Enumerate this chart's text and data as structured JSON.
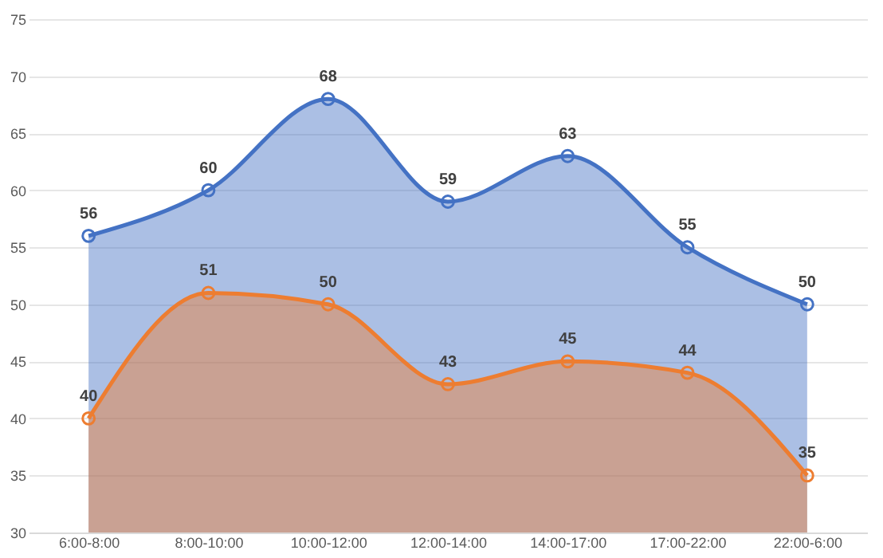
{
  "chart_data": {
    "type": "area",
    "categories": [
      "6:00-8:00",
      "8:00-10:00",
      "10:00-12:00",
      "12:00-14:00",
      "14:00-17:00",
      "17:00-22:00",
      "22:00-6:00"
    ],
    "series": [
      {
        "color": "#4472c4",
        "values": [
          56,
          60,
          68,
          59,
          63,
          55,
          50
        ]
      },
      {
        "color": "#ed7d31",
        "values": [
          40,
          51,
          50,
          43,
          45,
          44,
          35
        ]
      }
    ],
    "ylim": [
      30,
      75
    ],
    "yticks": [
      30,
      35,
      40,
      45,
      50,
      55,
      60,
      65,
      70,
      75
    ],
    "grid": "y",
    "marker": "circle",
    "data_labels": true,
    "line_style": "solid"
  }
}
